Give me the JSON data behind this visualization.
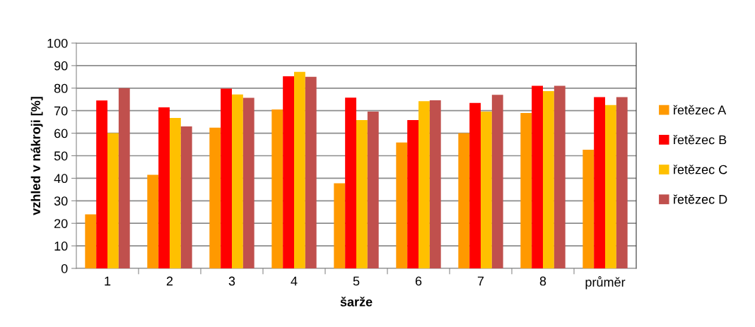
{
  "chart_data": {
    "type": "bar",
    "xlabel": "šarže",
    "ylabel": "vzhled v nákroji [%]",
    "categories": [
      "1",
      "2",
      "3",
      "4",
      "5",
      "6",
      "7",
      "8",
      "průměr"
    ],
    "series": [
      {
        "name": "řetězec A",
        "color": "#ff9900",
        "values": [
          24,
          41.5,
          62.5,
          70.5,
          37.8,
          55.9,
          60,
          69,
          52.7
        ]
      },
      {
        "name": "řetězec B",
        "color": "#ff0000",
        "values": [
          74.5,
          71.5,
          79.8,
          85.3,
          75.8,
          65.8,
          73.4,
          81,
          76
        ]
      },
      {
        "name": "řetězec C",
        "color": "#ffc000",
        "values": [
          60,
          66.8,
          77.2,
          87.2,
          65.8,
          74.2,
          69.6,
          78.7,
          72.5
        ]
      },
      {
        "name": "řetězec D",
        "color": "#c0504d",
        "values": [
          80,
          63,
          75.7,
          85,
          69.6,
          74.6,
          77,
          81,
          76
        ]
      }
    ],
    "ylim": [
      0,
      100
    ],
    "yticks": [
      0,
      10,
      20,
      30,
      40,
      50,
      60,
      70,
      80,
      90,
      100
    ],
    "grid": "y",
    "legend": "right"
  }
}
